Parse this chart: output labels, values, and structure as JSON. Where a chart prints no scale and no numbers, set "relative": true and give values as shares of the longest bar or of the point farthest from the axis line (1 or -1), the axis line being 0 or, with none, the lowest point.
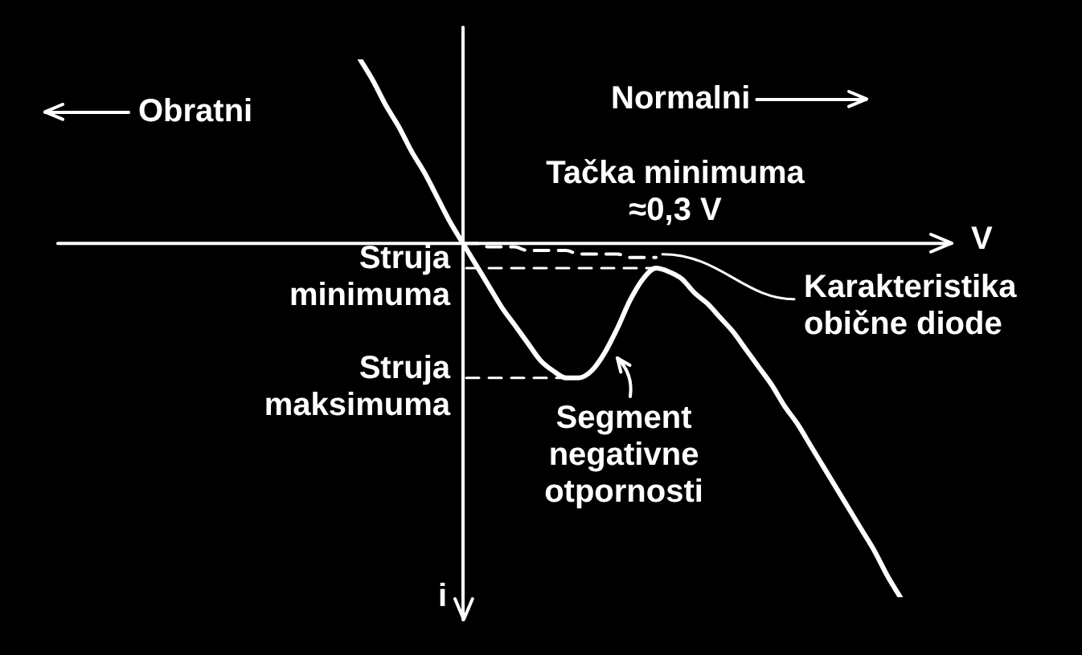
{
  "chart_data": {
    "type": "line",
    "relative": true,
    "categories": [
      null,
      null,
      null,
      null,
      null,
      null,
      null,
      null,
      null,
      null,
      null,
      null,
      null,
      null,
      null,
      null,
      null,
      null,
      null,
      null,
      null,
      null,
      null,
      null,
      null,
      null,
      null,
      null,
      null,
      null,
      null,
      null,
      null,
      null,
      null,
      null,
      null,
      null,
      null,
      null,
      null,
      null,
      null
    ],
    "xlabel": "V",
    "ylabel": "i",
    "marker": "none",
    "series": [
      {
        "color": "#ffffff",
        "values": [
          0.52,
          0.46,
          0.39,
          0.33,
          0.26,
          0.2,
          0.13,
          0.06,
          0,
          -0.06,
          -0.12,
          -0.18,
          -0.23,
          -0.28,
          -0.33,
          -0.36,
          -0.38,
          -0.38,
          -0.36,
          -0.31,
          -0.24,
          -0.16,
          -0.1,
          -0.07,
          -0.08,
          -0.1,
          -0.14,
          -0.17,
          -0.21,
          -0.25,
          -0.3,
          -0.35,
          -0.4,
          -0.46,
          -0.51,
          -0.57,
          -0.63,
          -0.69,
          -0.75,
          -0.81,
          -0.87,
          -0.94,
          -1
        ]
      },
      {
        "name": "Karakteristika obične diode",
        "color": "#ffffff",
        "line_style": "dashed",
        "values": [
          null,
          null,
          null,
          null,
          null,
          null,
          null,
          null,
          0,
          0,
          -0.01,
          -0.01,
          -0.01,
          -0.02,
          -0.02,
          -0.02,
          -0.02,
          -0.03,
          -0.03,
          -0.03,
          -0.03,
          -0.04,
          -0.04,
          -0.04,
          null,
          null,
          null,
          null,
          null,
          null,
          null,
          null,
          null,
          null,
          null,
          null,
          null,
          null,
          null,
          null,
          null,
          null,
          null
        ]
      }
    ],
    "annotations": [
      "Obratni",
      "Normalni",
      "Tačka minimuma ≈0,3 V",
      "Struja minimuma",
      "Struja maksimuma",
      "Segment negativne otpornosti"
    ]
  }
}
